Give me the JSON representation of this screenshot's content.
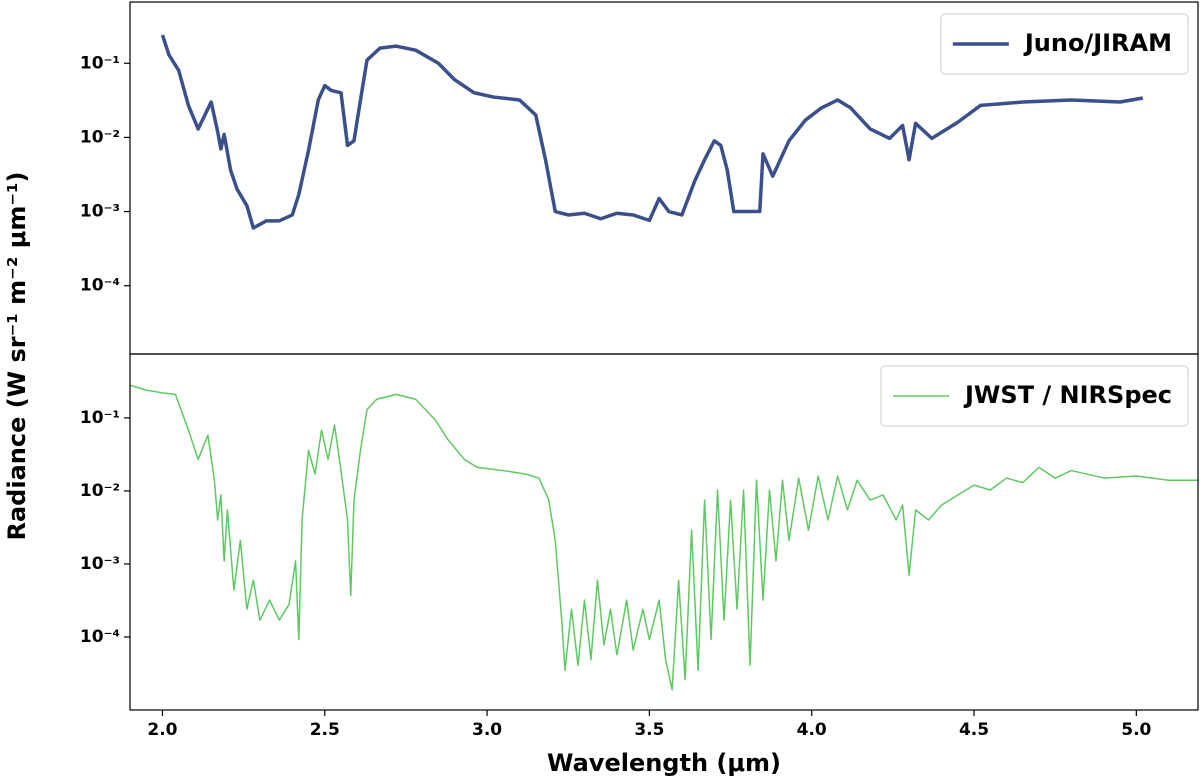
{
  "chart_data": [
    {
      "type": "line",
      "ylabel": "Radiance (W sr⁻¹ m⁻² μm⁻¹)",
      "xlim": [
        1.9,
        5.19
      ],
      "ylim": [
        1.2e-05,
        0.67
      ],
      "log_y": true,
      "legend": "upper right",
      "linewidth": 3.5,
      "yticks": [
        {
          "value": 0.1,
          "label": "10⁻¹"
        },
        {
          "value": 0.01,
          "label": "10⁻²"
        },
        {
          "value": 0.001,
          "label": "10⁻³"
        },
        {
          "value": 0.0001,
          "label": "10⁻⁴"
        }
      ],
      "x": [
        2.0,
        2.02,
        2.05,
        2.08,
        2.11,
        2.15,
        2.17,
        2.18,
        2.19,
        2.21,
        2.23,
        2.26,
        2.28,
        2.32,
        2.36,
        2.4,
        2.42,
        2.45,
        2.48,
        2.5,
        2.52,
        2.55,
        2.57,
        2.59,
        2.61,
        2.63,
        2.67,
        2.72,
        2.78,
        2.85,
        2.9,
        2.96,
        3.02,
        3.1,
        3.15,
        3.18,
        3.21,
        3.25,
        3.3,
        3.35,
        3.4,
        3.45,
        3.5,
        3.53,
        3.56,
        3.6,
        3.64,
        3.67,
        3.7,
        3.72,
        3.74,
        3.76,
        3.84,
        3.85,
        3.88,
        3.93,
        3.98,
        4.03,
        4.08,
        4.12,
        4.18,
        4.24,
        4.28,
        4.3,
        4.32,
        4.37,
        4.45,
        4.52,
        4.65,
        4.8,
        4.95,
        5.02
      ],
      "series": [
        {
          "name": "Juno/JIRAM",
          "color": "#3a4f8c",
          "values": [
            0.24,
            0.13,
            0.08,
            0.027,
            0.013,
            0.03,
            0.012,
            0.007,
            0.011,
            0.0036,
            0.002,
            0.0012,
            0.0006,
            0.00075,
            0.00075,
            0.0009,
            0.0017,
            0.0067,
            0.032,
            0.05,
            0.043,
            0.04,
            0.0078,
            0.009,
            0.032,
            0.11,
            0.16,
            0.17,
            0.15,
            0.1,
            0.06,
            0.04,
            0.035,
            0.032,
            0.02,
            0.005,
            0.001,
            0.0009,
            0.00095,
            0.0008,
            0.00095,
            0.0009,
            0.00076,
            0.0015,
            0.001,
            0.0009,
            0.0026,
            0.005,
            0.009,
            0.0078,
            0.0036,
            0.001,
            0.001,
            0.006,
            0.003,
            0.009,
            0.017,
            0.025,
            0.032,
            0.025,
            0.013,
            0.0097,
            0.0145,
            0.005,
            0.0155,
            0.0097,
            0.016,
            0.027,
            0.03,
            0.032,
            0.03,
            0.034
          ]
        }
      ]
    },
    {
      "type": "line",
      "xlabel": "Wavelength (μm)",
      "xlim": [
        1.9,
        5.19
      ],
      "ylim": [
        1e-05,
        0.75
      ],
      "log_y": true,
      "legend": "upper right",
      "linewidth": 1.5,
      "xticks": [
        {
          "value": 2,
          "label": "2.0"
        },
        2.5,
        {
          "value": 3,
          "label": "3.0"
        },
        3.5,
        {
          "value": 4,
          "label": "4.0"
        },
        4.5,
        {
          "value": 5,
          "label": "5.0"
        }
      ],
      "yticks": [
        {
          "value": 0.1,
          "label": "10⁻¹"
        },
        {
          "value": 0.01,
          "label": "10⁻²"
        },
        {
          "value": 0.001,
          "label": "10⁻³"
        },
        {
          "value": 0.0001,
          "label": "10⁻⁴"
        }
      ],
      "x": [
        1.9,
        1.95,
        2.0,
        2.04,
        2.08,
        2.11,
        2.14,
        2.16,
        2.17,
        2.18,
        2.19,
        2.2,
        2.22,
        2.24,
        2.26,
        2.28,
        2.3,
        2.33,
        2.36,
        2.39,
        2.41,
        2.42,
        2.43,
        2.45,
        2.47,
        2.49,
        2.51,
        2.53,
        2.55,
        2.57,
        2.58,
        2.59,
        2.61,
        2.63,
        2.66,
        2.72,
        2.78,
        2.84,
        2.88,
        2.93,
        2.97,
        3.05,
        3.12,
        3.16,
        3.19,
        3.21,
        3.23,
        3.24,
        3.26,
        3.28,
        3.3,
        3.32,
        3.34,
        3.36,
        3.38,
        3.4,
        3.43,
        3.45,
        3.48,
        3.5,
        3.53,
        3.55,
        3.57,
        3.59,
        3.61,
        3.63,
        3.65,
        3.67,
        3.69,
        3.71,
        3.73,
        3.75,
        3.77,
        3.79,
        3.81,
        3.83,
        3.85,
        3.87,
        3.89,
        3.91,
        3.93,
        3.96,
        3.99,
        4.02,
        4.05,
        4.08,
        4.11,
        4.14,
        4.18,
        4.22,
        4.26,
        4.28,
        4.3,
        4.32,
        4.36,
        4.4,
        4.45,
        4.5,
        4.55,
        4.6,
        4.65,
        4.7,
        4.75,
        4.8,
        4.9,
        5.0,
        5.1,
        5.19
      ],
      "series": [
        {
          "name": "JWST / NIRSpec",
          "color": "#5ec962",
          "values": [
            0.28,
            0.24,
            0.22,
            0.21,
            0.068,
            0.027,
            0.058,
            0.014,
            0.004,
            0.0088,
            0.0011,
            0.0055,
            0.00044,
            0.0021,
            0.00024,
            0.0006,
            0.00017,
            0.00032,
            0.00017,
            0.00028,
            0.0011,
            9.2e-05,
            0.004,
            0.036,
            0.017,
            0.068,
            0.027,
            0.08,
            0.019,
            0.004,
            0.00037,
            0.0075,
            0.036,
            0.13,
            0.18,
            0.21,
            0.18,
            0.094,
            0.05,
            0.027,
            0.021,
            0.019,
            0.017,
            0.015,
            0.0075,
            0.0021,
            0.00017,
            3.5e-05,
            0.00024,
            4.1e-05,
            0.00032,
            4.9e-05,
            0.0006,
            7.8e-05,
            0.00024,
            5.7e-05,
            0.00032,
            6.6e-05,
            0.00024,
            9.2e-05,
            0.00032,
            4.9e-05,
            1.9e-05,
            0.0006,
            2.6e-05,
            0.0029,
            3.5e-05,
            0.0075,
            9.2e-05,
            0.0103,
            0.00017,
            0.0075,
            0.00024,
            0.0103,
            4.1e-05,
            0.014,
            0.00032,
            0.0103,
            0.0011,
            0.014,
            0.0021,
            0.015,
            0.0029,
            0.016,
            0.004,
            0.016,
            0.0055,
            0.014,
            0.0075,
            0.0088,
            0.004,
            0.0064,
            0.0007,
            0.0055,
            0.004,
            0.0064,
            0.0088,
            0.012,
            0.0103,
            0.015,
            0.013,
            0.021,
            0.015,
            0.019,
            0.015,
            0.016,
            0.014,
            0.014
          ]
        }
      ]
    }
  ]
}
